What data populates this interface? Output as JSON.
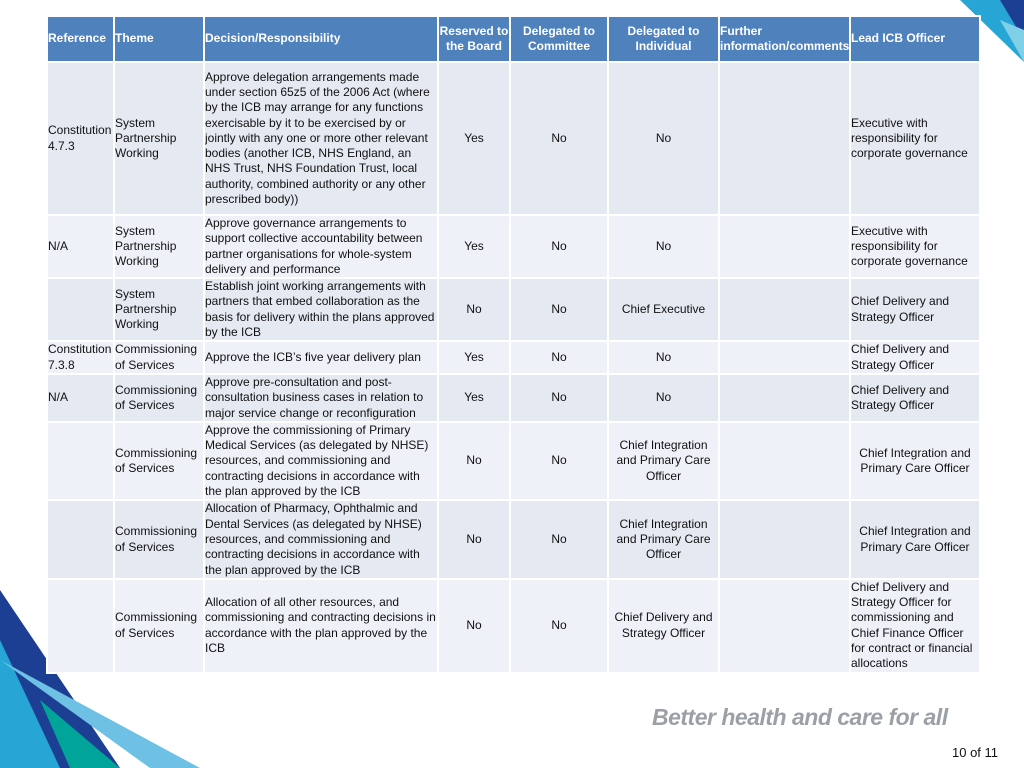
{
  "table": {
    "header": [
      "Reference",
      "Theme",
      "Decision/Responsibility",
      "Reserved to the Board",
      "Delegated to Committee",
      "Delegated to Individual",
      "Further information/comments",
      "Lead ICB Officer"
    ],
    "rows": [
      [
        "Constitution 4.7.3",
        "System Partnership Working",
        "Approve delegation arrangements made under section 65z5 of the 2006 Act (where by the ICB may arrange for any functions exercisable by it to be exercised by or jointly with any one or more other relevant bodies (another ICB, NHS England, an NHS Trust, NHS Foundation Trust, local authority, combined authority or any other prescribed body))",
        "Yes",
        "No",
        "No",
        null,
        "Executive with responsibility for corporate governance"
      ],
      [
        "N/A",
        "System Partnership Working",
        "Approve governance arrangements to support collective accountability between partner organisations for whole-system delivery and performance",
        "Yes",
        "No",
        "No",
        null,
        "Executive with responsibility for corporate governance"
      ],
      [
        null,
        "System Partnership Working",
        "Establish joint working arrangements with partners that embed collaboration as the basis for delivery within the plans approved by the ICB",
        "No",
        "No",
        "Chief Executive",
        null,
        "Chief Delivery and Strategy Officer"
      ],
      [
        "Constitution 7.3.8",
        "Commissioning of Services",
        "Approve the ICB’s five year delivery plan",
        "Yes",
        "No",
        "No",
        null,
        "Chief Delivery and Strategy Officer"
      ],
      [
        "N/A",
        "Commissioning of Services",
        "Approve pre-consultation and post-consultation business cases in relation to major service change or reconfiguration",
        "Yes",
        "No",
        "No",
        null,
        "Chief Delivery and Strategy Officer"
      ],
      [
        null,
        "Commissioning of Services",
        "Approve the commissioning of Primary Medical Services (as delegated by NHSE) resources, and commissioning and contracting decisions in accordance with the plan approved by the ICB",
        "No",
        "No",
        "Chief Integration and Primary Care Officer",
        null,
        "Chief Integration and Primary Care Officer"
      ],
      [
        null,
        "Commissioning of Services",
        "Allocation of Pharmacy, Ophthalmic and Dental Services (as delegated by NHSE) resources, and commissioning and contracting decisions in accordance with the plan approved by the ICB",
        "No",
        "No",
        "Chief Integration and Primary Care Officer",
        null,
        "Chief Integration and Primary Care Officer"
      ],
      [
        null,
        "Commissioning of Services",
        "Allocation of all other resources, and commissioning and contracting decisions in accordance with the plan approved by the ICB",
        "No",
        "No",
        "Chief Delivery and Strategy Officer",
        null,
        "Chief Delivery and Strategy Officer for commissioning and Chief Finance Officer for contract or financial allocations"
      ]
    ]
  },
  "footer": {
    "slogan": "Better health and care for all",
    "page": "10 of 11"
  }
}
